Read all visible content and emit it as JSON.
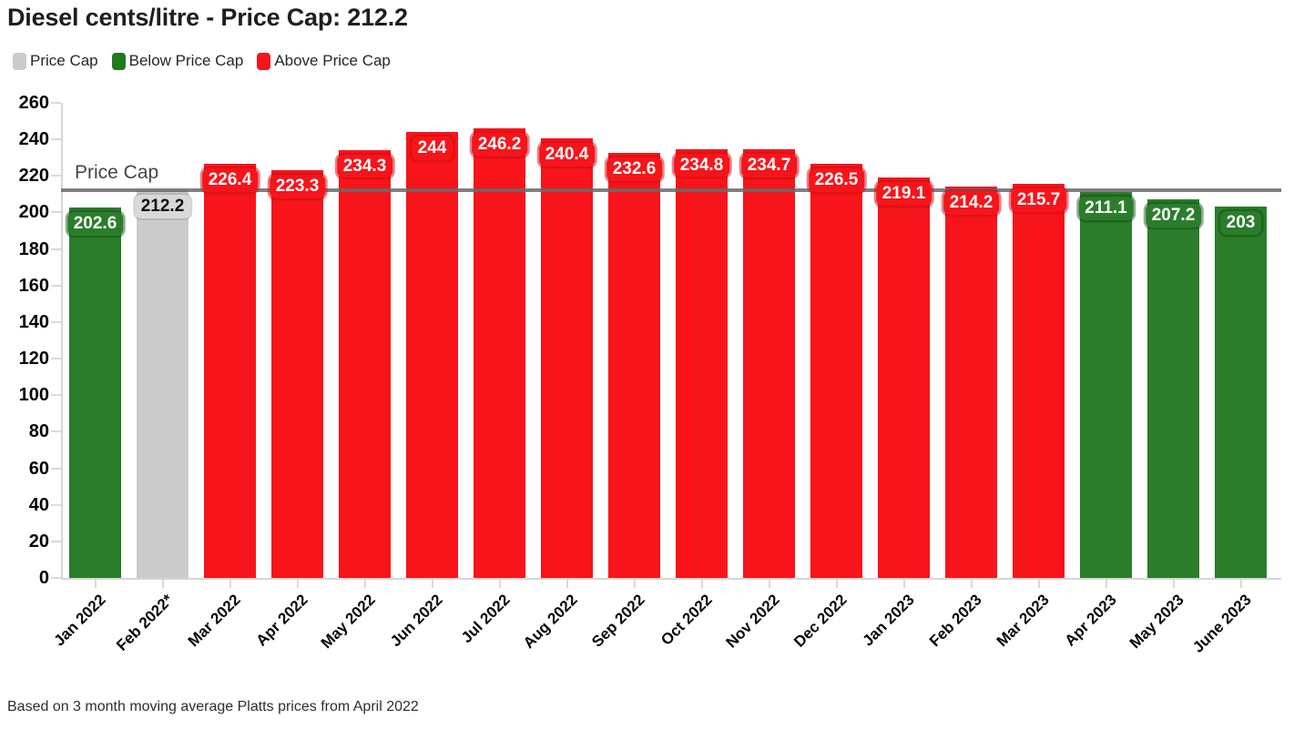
{
  "title": "Diesel cents/litre - Price Cap: 212.2",
  "footnote": "Based on 3 month moving average Platts prices from April 2022",
  "legend": [
    {
      "label": "Price Cap",
      "color": "#cbcbcb"
    },
    {
      "label": "Below Price Cap",
      "color": "#1d7a1d"
    },
    {
      "label": "Above Price Cap",
      "color": "#f7141b"
    }
  ],
  "colors": {
    "below": "#2b7d2b",
    "cap_bar": "#cbcbcb",
    "above": "#f7141b",
    "cap_line": "#6a6a6a",
    "badge_text_on_color": "#ffffff",
    "badge_text_on_cap": "#111111",
    "cap_badge_bg": "#d9d9d9",
    "axis": "#d6d6d6",
    "tick_text": "#050505"
  },
  "chart_data": {
    "type": "bar",
    "title": "Diesel cents/litre - Price Cap: 212.2",
    "xlabel": "",
    "ylabel": "",
    "ylim": [
      0,
      260
    ],
    "ytick_step": 20,
    "grid": false,
    "legend_position": "top",
    "categories": [
      "Jan 2022",
      "Feb 2022*",
      "Mar 2022",
      "Apr 2022",
      "May 2022",
      "Jun 2022",
      "Jul 2022",
      "Aug 2022",
      "Sep 2022",
      "Oct 2022",
      "Nov 2022",
      "Dec 2022",
      "Jan 2023",
      "Feb 2023",
      "Mar 2023",
      "Apr 2023",
      "May 2023",
      "June 2023"
    ],
    "values": [
      202.6,
      212.2,
      226.4,
      223.3,
      234.3,
      244,
      246.2,
      240.4,
      232.6,
      234.8,
      234.7,
      226.5,
      219.1,
      214.2,
      215.7,
      211.1,
      207.2,
      203
    ],
    "bar_types": [
      "below",
      "cap",
      "above",
      "above",
      "above",
      "above",
      "above",
      "above",
      "above",
      "above",
      "above",
      "above",
      "above",
      "above",
      "above",
      "below",
      "below",
      "below"
    ],
    "reference_line": {
      "value": 212.2,
      "label": "Price Cap"
    }
  }
}
